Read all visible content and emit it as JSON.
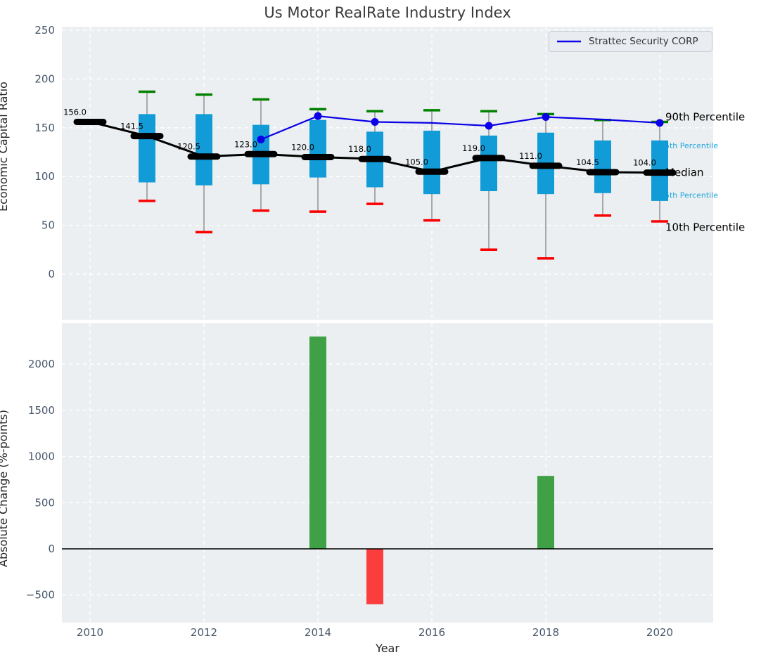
{
  "title": "Us Motor RealRate Industry Index",
  "legend": {
    "label": "Strattec Security CORP"
  },
  "colors": {
    "figure_bg": "#ffffff",
    "plot_bg": "#eceff1",
    "grid": "#ffffff",
    "box_fill": "#119bd7",
    "median_color": "#000000",
    "company_line": "#0b00e6",
    "whisker_line": "#7a7a7a",
    "whisker_high_cap": "#008200",
    "whisker_low_cap": "#fb0000",
    "bar_positive": "#3fa045",
    "bar_negative": "#fb3d3d",
    "tick_label": "#47586b",
    "percentile_small_label": "#1fa6dc",
    "zero_line": "#000000"
  },
  "chart_data": [
    {
      "type": "boxplot_with_line",
      "title": "Us Motor RealRate Industry Index",
      "ylabel": "Economic Capital Ratio",
      "xlabel": "",
      "grid": true,
      "legend_position": "upper right",
      "yticks": [
        0,
        50,
        100,
        150,
        200,
        250
      ],
      "xticks": [
        2010,
        2012,
        2014,
        2016,
        2018,
        2020
      ],
      "ylim": [
        -47,
        256
      ],
      "boxes": [
        {
          "year": 2010,
          "median": 156.0,
          "label": "156.0"
        },
        {
          "year": 2011,
          "median": 141.5,
          "label": "141.5",
          "q1": 94,
          "q3": 164,
          "whisker_low": 75,
          "whisker_high": 187
        },
        {
          "year": 2012,
          "median": 120.5,
          "label": "120.5",
          "q1": 91,
          "q3": 164,
          "whisker_low": 43,
          "whisker_high": 184
        },
        {
          "year": 2013,
          "median": 123.0,
          "label": "123.0",
          "q1": 92,
          "q3": 153,
          "whisker_low": 65,
          "whisker_high": 179
        },
        {
          "year": 2014,
          "median": 120.0,
          "label": "120.0",
          "q1": 99,
          "q3": 158,
          "whisker_low": 64,
          "whisker_high": 169
        },
        {
          "year": 2015,
          "median": 118.0,
          "label": "118.0",
          "q1": 89,
          "q3": 146,
          "whisker_low": 72,
          "whisker_high": 167
        },
        {
          "year": 2016,
          "median": 105.0,
          "label": "105.0",
          "q1": 82,
          "q3": 147,
          "whisker_low": 55,
          "whisker_high": 168
        },
        {
          "year": 2017,
          "median": 119.0,
          "label": "119.0",
          "q1": 85,
          "q3": 142,
          "whisker_low": 25,
          "whisker_high": 167
        },
        {
          "year": 2018,
          "median": 111.0,
          "label": "111.0",
          "q1": 82,
          "q3": 145,
          "whisker_low": 16,
          "whisker_high": 164
        },
        {
          "year": 2019,
          "median": 104.5,
          "label": "104.5",
          "q1": 83,
          "q3": 137,
          "whisker_low": 60,
          "whisker_high": 158
        },
        {
          "year": 2020,
          "median": 104.0,
          "label": "104.0",
          "q1": 75,
          "q3": 137,
          "whisker_low": 54,
          "whisker_high": 156
        }
      ],
      "company_series": {
        "name": "Strattec Security CORP",
        "x": [
          2013,
          2014,
          2015,
          2016,
          2017,
          2018,
          2019,
          2020
        ],
        "y": [
          138,
          162,
          156,
          155,
          152,
          161,
          158.5,
          155
        ],
        "marker_years": [
          2013,
          2014,
          2015,
          2017,
          2018,
          2020
        ]
      },
      "annotations": [
        {
          "text": "90th Percentile",
          "value": 161,
          "style": "large"
        },
        {
          "text": "75th Percentile",
          "value": 132,
          "style": "small"
        },
        {
          "text": "Median",
          "value": 104,
          "style": "large"
        },
        {
          "text": "25th Percentile",
          "value": 81,
          "style": "small"
        },
        {
          "text": "10th Percentile",
          "value": 48,
          "style": "large"
        }
      ]
    },
    {
      "type": "bar",
      "ylabel": "Absolute Change (%-points)",
      "xlabel": "Year",
      "grid": true,
      "yticks": [
        -500,
        0,
        500,
        1000,
        1500,
        2000
      ],
      "xticks": [
        2010,
        2012,
        2014,
        2016,
        2018,
        2020
      ],
      "ylim": [
        -800,
        2440
      ],
      "zero_line": true,
      "bars": [
        {
          "year": 2014,
          "value": 2300
        },
        {
          "year": 2015,
          "value": -600
        },
        {
          "year": 2018,
          "value": 790
        }
      ]
    }
  ]
}
